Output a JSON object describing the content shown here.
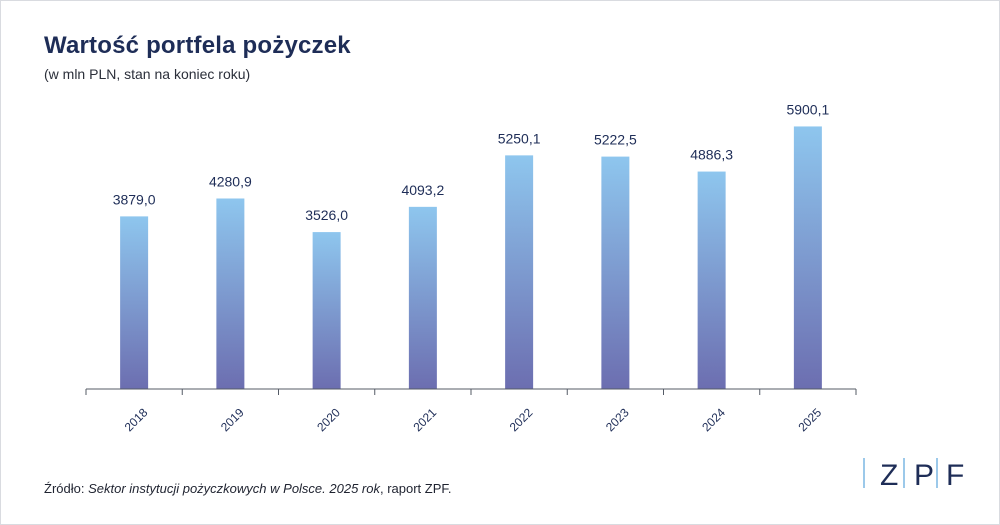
{
  "colors": {
    "title": "#1e2d57",
    "bar_top": "#8ec6ee",
    "bar_bottom": "#6c6eb0",
    "axis": "#555b66",
    "label": "#1e2d57",
    "logo_accent": "#7bb7e2"
  },
  "chart_data": {
    "type": "bar",
    "title": "Wartość portfela pożyczek",
    "subtitle": "(w mln PLN, stan na koniec roku)",
    "categories": [
      "2018",
      "2019",
      "2020",
      "2021",
      "2022",
      "2023",
      "2024",
      "2025"
    ],
    "values": [
      3879.0,
      4280.9,
      3526.0,
      4093.2,
      5250.1,
      5222.5,
      4886.3,
      5900.1
    ],
    "value_labels": [
      "3879,0",
      "4280,9",
      "3526,0",
      "4093,2",
      "5250,1",
      "5222,5",
      "4886,3",
      "5900,1"
    ],
    "xlabel": "",
    "ylabel": "",
    "ylim": [
      0,
      6000
    ],
    "grid": false,
    "legend": "none"
  },
  "source": {
    "prefix": "Źródło: ",
    "italic": "Sektor instytucji pożyczkowych w Polsce. 2025 rok",
    "suffix": ", raport ZPF."
  },
  "logo": {
    "letters": [
      "Z",
      "P",
      "F"
    ]
  }
}
